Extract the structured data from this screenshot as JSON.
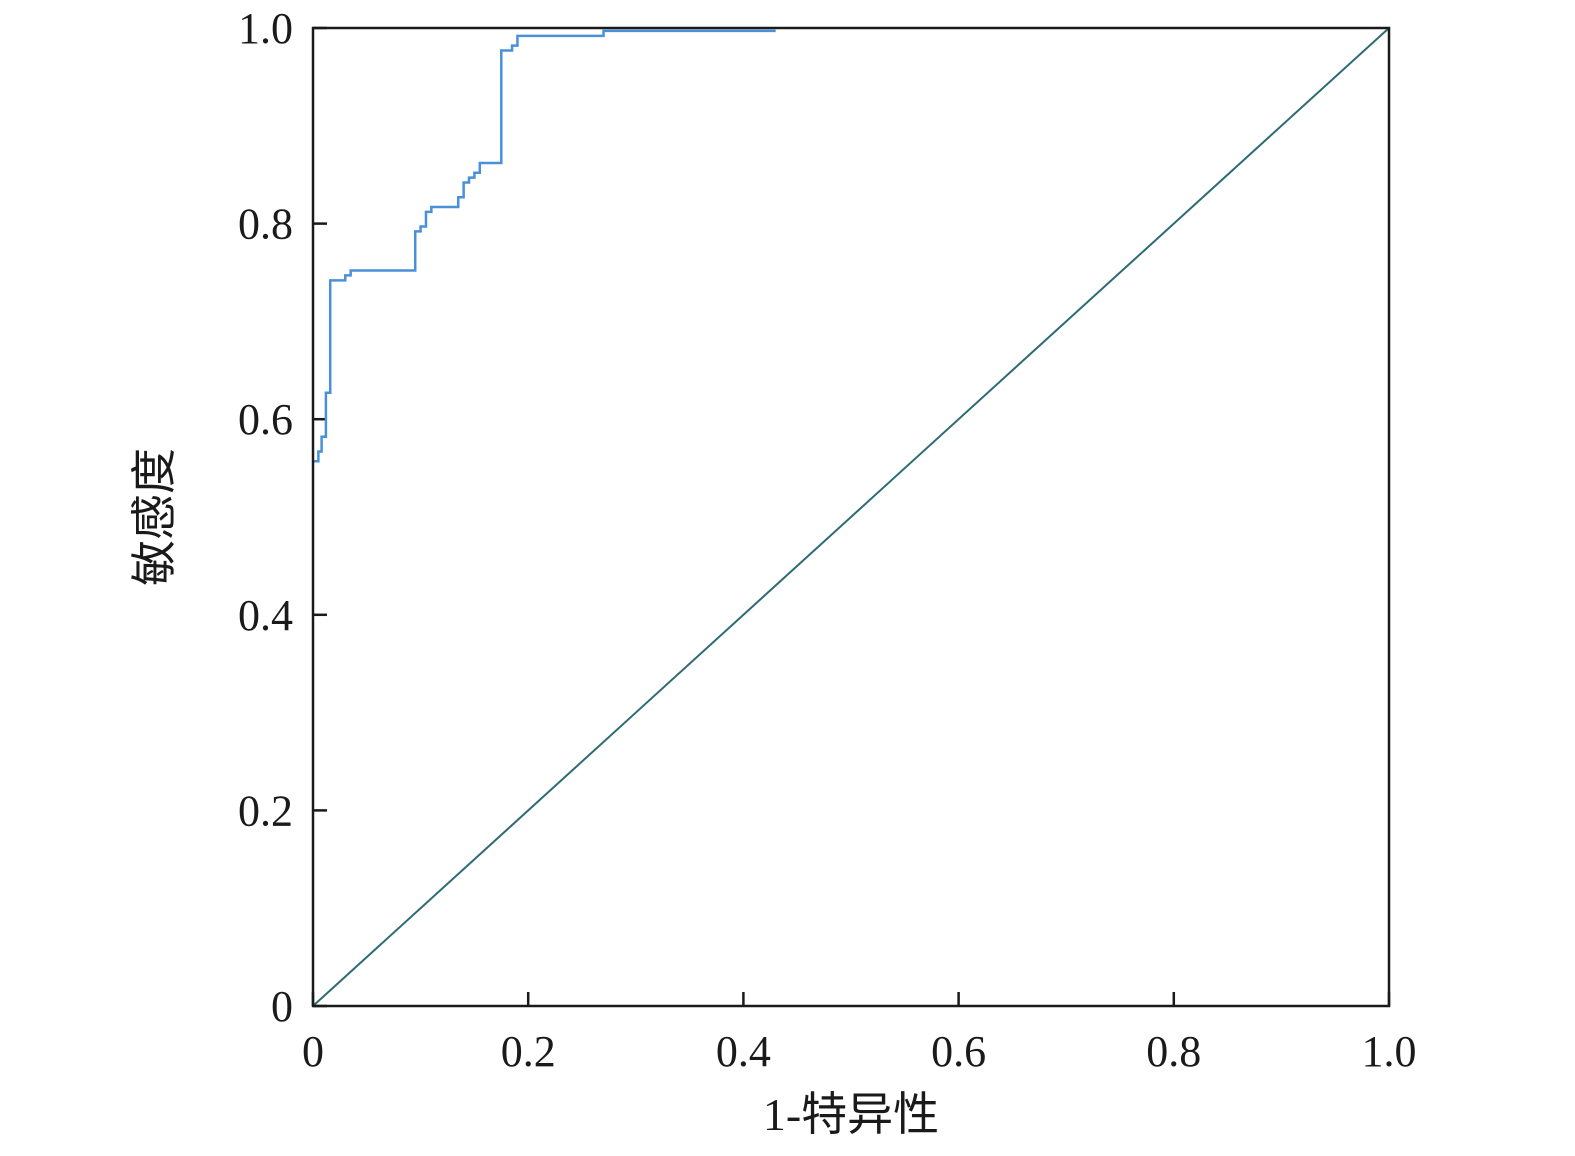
{
  "chart_data": {
    "type": "line",
    "title": "",
    "xlabel": "1-特异性",
    "ylabel": "敏感度",
    "xlim": [
      0,
      1
    ],
    "ylim": [
      0,
      1
    ],
    "grid": false,
    "legend": "none",
    "x_ticks": [
      0,
      0.2,
      0.4,
      0.6,
      0.8,
      1.0
    ],
    "x_tick_labels": [
      "0",
      "0.2",
      "0.4",
      "0.6",
      "0.8",
      "1.0"
    ],
    "y_ticks": [
      0,
      0.2,
      0.4,
      0.6,
      0.8,
      1.0
    ],
    "y_tick_labels": [
      "0",
      "0.2",
      "0.4",
      "0.6",
      "0.8",
      "1.0"
    ],
    "series": [
      {
        "color": "#4a90d9",
        "step": true,
        "x": [
          0.0,
          0.005,
          0.008,
          0.012,
          0.016,
          0.02,
          0.03,
          0.035,
          0.04,
          0.095,
          0.1,
          0.105,
          0.11,
          0.135,
          0.14,
          0.145,
          0.15,
          0.155,
          0.16,
          0.175,
          0.18,
          0.185,
          0.19,
          0.27,
          0.43
        ],
        "y": [
          0.557,
          0.567,
          0.582,
          0.627,
          0.742,
          0.742,
          0.747,
          0.752,
          0.752,
          0.792,
          0.797,
          0.812,
          0.817,
          0.827,
          0.842,
          0.847,
          0.852,
          0.862,
          0.862,
          0.977,
          0.977,
          0.982,
          0.992,
          0.997,
          0.997
        ]
      },
      {
        "color": "#2e6b73",
        "step": false,
        "x": [
          0,
          1
        ],
        "y": [
          0,
          1
        ]
      }
    ]
  }
}
